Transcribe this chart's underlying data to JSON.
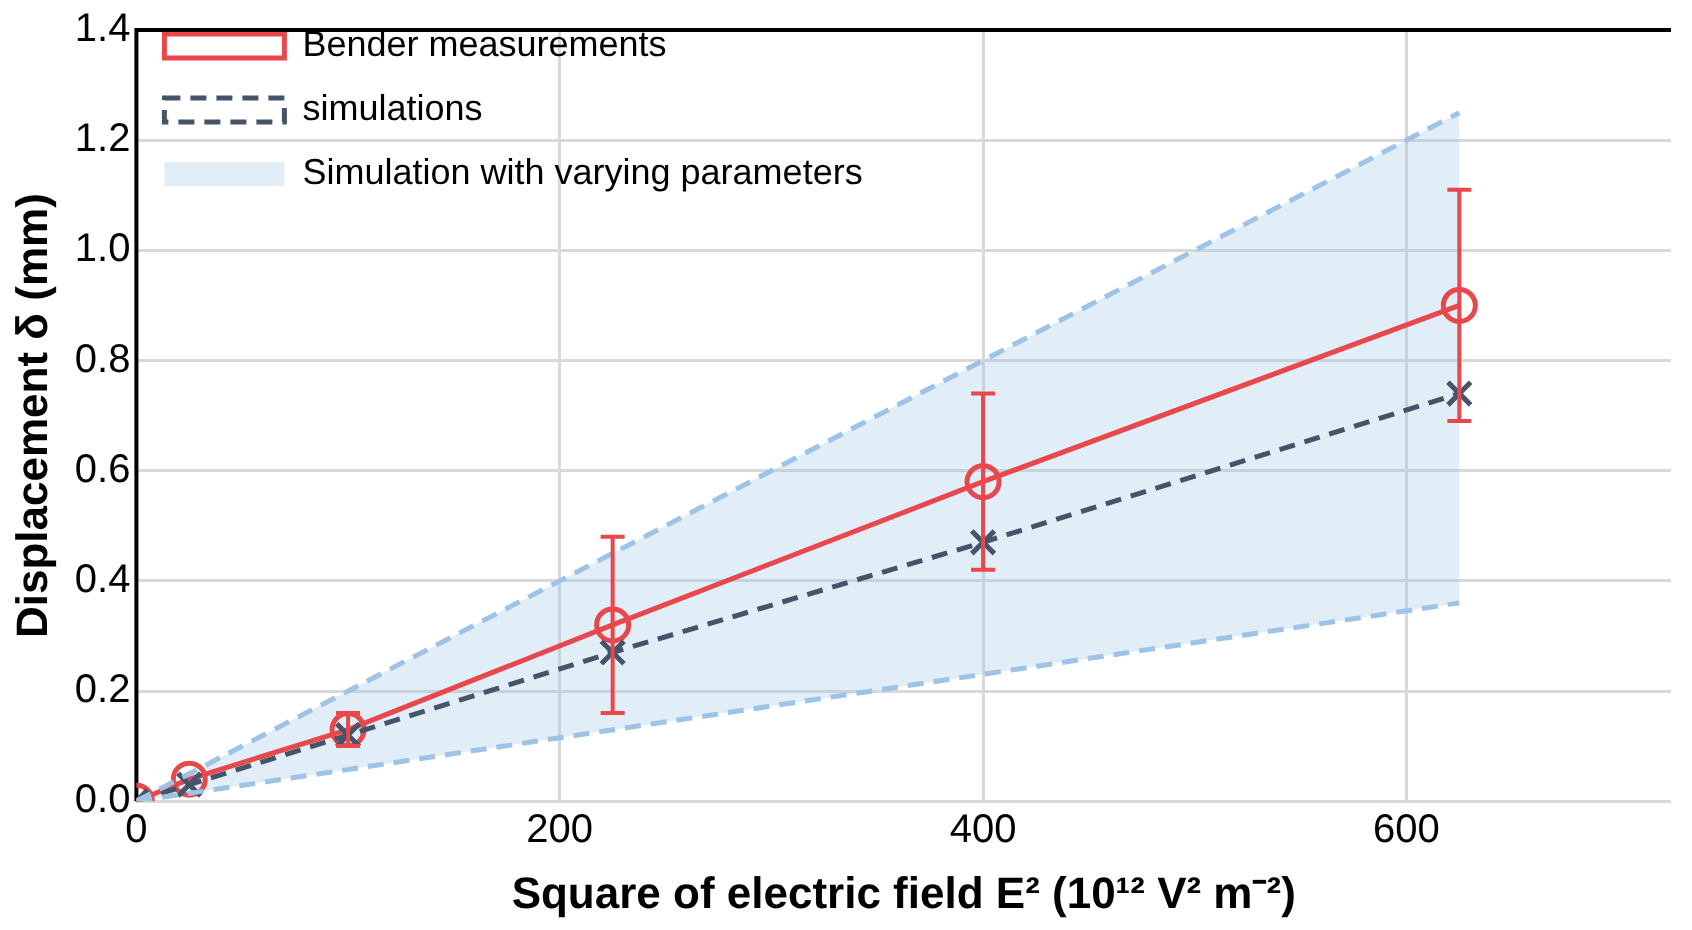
{
  "chart_data": {
    "type": "line",
    "xlabel": "Square of electric field E² (10¹² V² m⁻²)",
    "ylabel": "Displacement δ (mm)",
    "xlim": [
      0,
      725
    ],
    "xticks": [
      0,
      200,
      400,
      600
    ],
    "ylim": [
      0,
      1.4
    ],
    "yticks": [
      {
        "value": 0,
        "label": "0.0"
      },
      0.2,
      0.4,
      0.6,
      0.8,
      {
        "value": 1,
        "label": "1.0"
      },
      1.2,
      1.4
    ],
    "grid": true,
    "legend": "top left",
    "series": [
      {
        "name": "Bender measurements",
        "color": "#e8474b",
        "x": [
          0,
          25,
          100,
          225,
          400,
          625
        ],
        "values": [
          0,
          0.04,
          0.13,
          0.32,
          0.58,
          0.9
        ],
        "errors": [
          null,
          null,
          [
            0.1,
            0.16
          ],
          [
            0.16,
            0.48
          ],
          [
            0.42,
            0.74
          ],
          [
            0.69,
            1.11
          ]
        ],
        "line_style": "solid",
        "marker": "circle"
      },
      {
        "name": "simulations",
        "color": "#44546a",
        "x": [
          0,
          25,
          100,
          225,
          400,
          625
        ],
        "values": [
          0,
          0.03,
          0.12,
          0.27,
          0.47,
          0.74
        ],
        "line_style": "dashed",
        "marker": "cross"
      },
      {
        "name": "Simulation with varying parameters",
        "color": "#9dc3e6",
        "x": [
          0,
          625
        ],
        "values": [
          0,
          1.25
        ],
        "lower": [
          0,
          0.36
        ],
        "upper": [
          0,
          1.25
        ],
        "line_style": "dashed",
        "marker": "none"
      },
      {
        "color": "#9dc3e6",
        "x": [
          0,
          625
        ],
        "values": [
          0,
          0.36
        ],
        "line_style": "dashed",
        "marker": "none"
      }
    ]
  }
}
